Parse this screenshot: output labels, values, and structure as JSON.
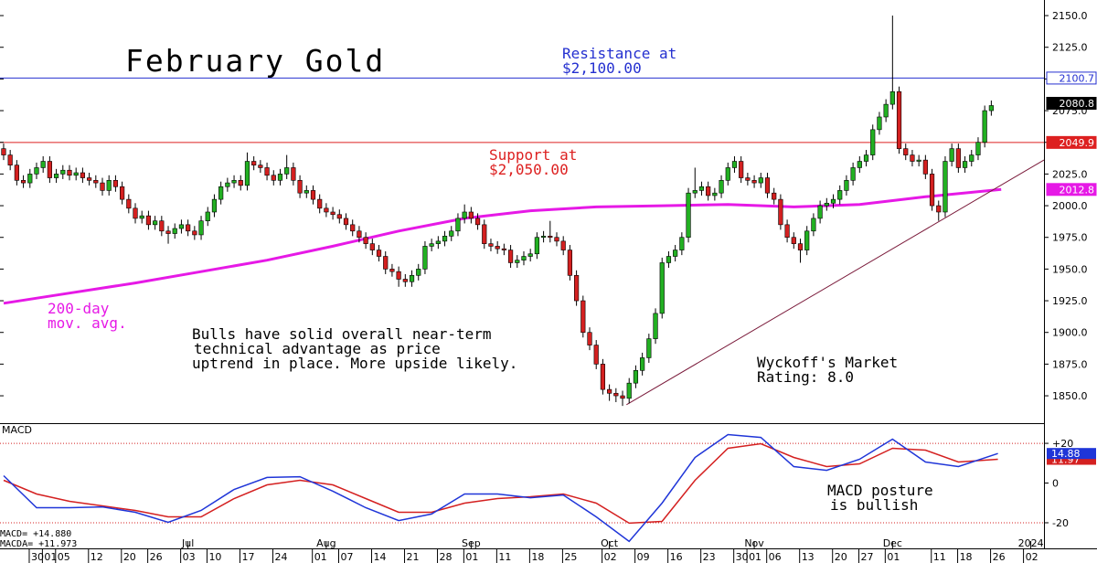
{
  "chart_data": {
    "type": "candlestick",
    "title": "February Gold",
    "xlim": [
      -0.55,
      158
    ],
    "ylim": [
      1828.4,
      2162.3
    ],
    "yticks": [
      {
        "value": 1850,
        "label": "1850.0"
      },
      {
        "value": 1875,
        "label": "1875.0"
      },
      {
        "value": 1900,
        "label": "1900.0"
      },
      {
        "value": 1925,
        "label": "1925.0"
      },
      {
        "value": 1950,
        "label": "1950.0"
      },
      {
        "value": 1975,
        "label": "1975.0"
      },
      {
        "value": 2000,
        "label": "2000.0"
      },
      {
        "value": 2025,
        "label": "2025.0"
      },
      {
        "value": 2050,
        "label": "2050.0"
      },
      {
        "value": 2075,
        "label": "2075.0"
      },
      {
        "value": 2100,
        "label": "2100.0"
      },
      {
        "value": 2125,
        "label": "2125.0"
      },
      {
        "value": 2150,
        "label": "2150.0"
      }
    ],
    "xticks": [
      {
        "value": 5,
        "label": "30"
      },
      {
        "value": 7,
        "label": "01"
      },
      {
        "value": 9,
        "label": "05"
      },
      {
        "value": 14,
        "label": "12"
      },
      {
        "value": 19,
        "label": "20"
      },
      {
        "value": 23,
        "label": "26"
      },
      {
        "value": 28,
        "label": "03"
      },
      {
        "value": 32,
        "label": "10"
      },
      {
        "value": 37,
        "label": "17"
      },
      {
        "value": 42,
        "label": "24"
      },
      {
        "value": 48,
        "label": "01"
      },
      {
        "value": 52,
        "label": "07"
      },
      {
        "value": 57,
        "label": "14"
      },
      {
        "value": 62,
        "label": "21"
      },
      {
        "value": 67,
        "label": "28"
      },
      {
        "value": 71,
        "label": "01"
      },
      {
        "value": 76,
        "label": "11"
      },
      {
        "value": 81,
        "label": "18"
      },
      {
        "value": 86,
        "label": "25"
      },
      {
        "value": 92,
        "label": "02"
      },
      {
        "value": 97,
        "label": "09"
      },
      {
        "value": 102,
        "label": "16"
      },
      {
        "value": 107,
        "label": "23"
      },
      {
        "value": 112,
        "label": "30"
      },
      {
        "value": 114,
        "label": "01"
      },
      {
        "value": 117,
        "label": "06"
      },
      {
        "value": 122,
        "label": "13"
      },
      {
        "value": 127,
        "label": "20"
      },
      {
        "value": 131,
        "label": "27"
      },
      {
        "value": 135,
        "label": "01"
      },
      {
        "value": 142,
        "label": "11"
      },
      {
        "value": 146,
        "label": "18"
      },
      {
        "value": 151,
        "label": "26"
      },
      {
        "value": 156,
        "label": "02"
      }
    ],
    "months": [
      {
        "value": 28,
        "label": "Jul"
      },
      {
        "value": 49,
        "label": "Aug"
      },
      {
        "value": 71,
        "label": "Sep"
      },
      {
        "value": 92,
        "label": "Oct"
      },
      {
        "value": 114,
        "label": "Nov"
      },
      {
        "value": 135,
        "label": "Dec"
      },
      {
        "value": 156,
        "label": "2024"
      }
    ],
    "up_color": "#22b022",
    "down_color": "#d42020",
    "open": [
      2045,
      2040,
      2032,
      2020,
      2018,
      2025,
      2030,
      2035,
      2022,
      2025,
      2028,
      2024,
      2026,
      2022,
      2020,
      2018,
      2012,
      2020,
      2015,
      2005,
      1998,
      1990,
      1992,
      1985,
      1988,
      1980,
      1978,
      1982,
      1985,
      1980,
      1977,
      1988,
      1995,
      2005,
      2015,
      2018,
      2020,
      2016,
      2035,
      2032,
      2030,
      2024,
      2020,
      2025,
      2030,
      2020,
      2010,
      2012,
      2005,
      1998,
      1995,
      1993,
      1990,
      1985,
      1980,
      1975,
      1970,
      1965,
      1960,
      1950,
      1948,
      1942,
      1940,
      1945,
      1950,
      1968,
      1970,
      1972,
      1976,
      1980,
      1990,
      1995,
      1990,
      1985,
      1970,
      1968,
      1966,
      1965,
      1955,
      1957,
      1960,
      1962,
      1975,
      1976,
      1975,
      1972,
      1965,
      1945,
      1925,
      1900,
      1890,
      1875,
      1855,
      1852,
      1850,
      1848,
      1860,
      1870,
      1880,
      1895,
      1915,
      1955,
      1960,
      1965,
      1975,
      2010,
      2012,
      2015,
      2008,
      2010,
      2020,
      2030,
      2035,
      2022,
      2020,
      2018,
      2022,
      2010,
      2005,
      1985,
      1975,
      1970,
      1965,
      1980,
      1990,
      2000,
      2002,
      2005,
      2012,
      2020,
      2030,
      2035,
      2040,
      2060,
      2070,
      2080,
      2090,
      2045,
      2040,
      2035,
      2036,
      2025,
      2000,
      1995,
      2035,
      2045,
      2030,
      2035,
      2040,
      2050,
      2075
    ],
    "high": [
      2049,
      2044,
      2036,
      2024,
      2029,
      2034,
      2039,
      2039,
      2029,
      2032,
      2032,
      2030,
      2030,
      2026,
      2024,
      2022,
      2024,
      2024,
      2019,
      2009,
      2002,
      1996,
      1996,
      1992,
      1992,
      1984,
      1986,
      1989,
      1989,
      1984,
      1992,
      1999,
      2009,
      2019,
      2022,
      2024,
      2024,
      2042,
      2039,
      2036,
      2034,
      2028,
      2029,
      2040,
      2034,
      2024,
      2016,
      2016,
      2009,
      2002,
      1999,
      1997,
      1994,
      1989,
      1984,
      1979,
      1974,
      1969,
      1964,
      1954,
      1952,
      1946,
      1949,
      1954,
      1972,
      1974,
      1976,
      1980,
      1984,
      1994,
      2001,
      1999,
      1994,
      1989,
      1974,
      1972,
      1970,
      1969,
      1961,
      1964,
      1966,
      1979,
      1980,
      1988,
      1979,
      1976,
      1969,
      1949,
      1929,
      1904,
      1894,
      1879,
      1859,
      1856,
      1854,
      1864,
      1874,
      1884,
      1899,
      1919,
      1959,
      1964,
      1969,
      1979,
      2014,
      2030,
      2019,
      2019,
      2014,
      2024,
      2034,
      2039,
      2039,
      2026,
      2024,
      2026,
      2026,
      2014,
      2009,
      1989,
      1979,
      1974,
      1984,
      1994,
      2004,
      2006,
      2009,
      2016,
      2024,
      2034,
      2039,
      2044,
      2064,
      2074,
      2084,
      2150,
      2094,
      2049,
      2044,
      2040,
      2040,
      2029,
      2004,
      2039,
      2049,
      2049,
      2039,
      2044,
      2054,
      2079,
      2083
    ],
    "low": [
      2036,
      2028,
      2016,
      2014,
      2014,
      2021,
      2026,
      2018,
      2018,
      2021,
      2020,
      2020,
      2018,
      2016,
      2014,
      2008,
      2008,
      2011,
      2001,
      1994,
      1986,
      1986,
      1981,
      1981,
      1976,
      1970,
      1974,
      1978,
      1976,
      1973,
      1973,
      1984,
      1991,
      2001,
      2011,
      2014,
      2012,
      2012,
      2028,
      2026,
      2020,
      2016,
      2016,
      2021,
      2016,
      2006,
      2006,
      2001,
      1994,
      1991,
      1989,
      1986,
      1981,
      1976,
      1971,
      1966,
      1961,
      1956,
      1946,
      1944,
      1936,
      1936,
      1936,
      1941,
      1946,
      1964,
      1966,
      1968,
      1972,
      1976,
      1986,
      1986,
      1981,
      1966,
      1964,
      1962,
      1961,
      1951,
      1951,
      1953,
      1956,
      1958,
      1971,
      1971,
      1968,
      1961,
      1941,
      1921,
      1896,
      1886,
      1871,
      1851,
      1846,
      1845,
      1842,
      1844,
      1856,
      1866,
      1876,
      1891,
      1911,
      1951,
      1956,
      1961,
      1971,
      2006,
      2008,
      2004,
      2004,
      2006,
      2016,
      2026,
      2018,
      2016,
      2014,
      2014,
      2006,
      2001,
      1981,
      1971,
      1966,
      1955,
      1961,
      1976,
      1986,
      1996,
      1998,
      2001,
      2008,
      2016,
      2026,
      2031,
      2036,
      2056,
      2066,
      2076,
      2041,
      2036,
      2031,
      2031,
      2021,
      1996,
      1988,
      1991,
      2031,
      2026,
      2026,
      2031,
      2036,
      2046,
      2071
    ],
    "close": [
      2040,
      2032,
      2020,
      2018,
      2025,
      2030,
      2035,
      2022,
      2025,
      2028,
      2024,
      2026,
      2022,
      2020,
      2018,
      2012,
      2020,
      2015,
      2005,
      1998,
      1990,
      1992,
      1985,
      1988,
      1980,
      1978,
      1982,
      1985,
      1980,
      1977,
      1988,
      1995,
      2005,
      2015,
      2018,
      2020,
      2016,
      2035,
      2032,
      2030,
      2024,
      2020,
      2025,
      2030,
      2020,
      2010,
      2012,
      2005,
      1998,
      1995,
      1993,
      1990,
      1985,
      1980,
      1975,
      1970,
      1965,
      1960,
      1950,
      1948,
      1942,
      1940,
      1945,
      1950,
      1968,
      1970,
      1972,
      1976,
      1980,
      1990,
      1995,
      1990,
      1985,
      1970,
      1968,
      1966,
      1965,
      1955,
      1957,
      1960,
      1962,
      1975,
      1976,
      1975,
      1972,
      1965,
      1945,
      1925,
      1900,
      1890,
      1875,
      1855,
      1852,
      1850,
      1848,
      1860,
      1870,
      1880,
      1895,
      1915,
      1955,
      1960,
      1965,
      1975,
      2010,
      2012,
      2015,
      2008,
      2010,
      2020,
      2030,
      2035,
      2022,
      2020,
      2018,
      2022,
      2010,
      2005,
      1985,
      1975,
      1970,
      1965,
      1980,
      1990,
      2000,
      2002,
      2005,
      2012,
      2020,
      2030,
      2035,
      2040,
      2060,
      2070,
      2080,
      2090,
      2045,
      2040,
      2035,
      2036,
      2025,
      2000,
      1995,
      2035,
      2045,
      2030,
      2035,
      2040,
      2050,
      2075,
      2079
    ],
    "ma": {
      "color": "#e619e6",
      "x": [
        0,
        10,
        20,
        30,
        40,
        50,
        60,
        70,
        80,
        90,
        100,
        110,
        120,
        130,
        140,
        151.5
      ],
      "values": [
        1923,
        1931,
        1939,
        1948,
        1957,
        1968,
        1980,
        1990,
        1996,
        1999,
        2000,
        2001,
        1999,
        2001,
        2007,
        2012.8
      ]
    },
    "trendline": {
      "color": "#7a1a3a",
      "x": [
        94.6,
        158
      ],
      "values": [
        1843,
        2036
      ]
    },
    "price_markers": [
      {
        "value": 2100.7,
        "color": "#2430d0",
        "filled": false,
        "line": true
      },
      {
        "value": 2049.9,
        "color": "#dd2020",
        "filled": true,
        "line": true
      },
      {
        "value": 2012.8,
        "color": "#e619e6",
        "filled": true,
        "line": false
      },
      {
        "value": 2080.8,
        "color": "#000000",
        "filled": true,
        "line": false
      }
    ],
    "notes": {
      "resistance": [
        "Resistance at",
        "$2,100.00"
      ],
      "support": [
        "Support at",
        "$2,050.00"
      ],
      "ma": [
        "200-day",
        "mov. avg."
      ],
      "bulls": [
        "Bulls have solid overall near-term",
        "technical advantage as price",
        "uptrend in place. More upside likely."
      ],
      "rating": [
        "Wyckoff's Market",
        "Rating: 8.0"
      ]
    },
    "macd": {
      "title": "MACD",
      "ylim": [
        -32.9,
        29.7
      ],
      "yticks": [
        {
          "value": 20,
          "label": "+20"
        },
        0,
        {
          "value": -20,
          "label": "-20"
        }
      ],
      "x": [
        0,
        5,
        10,
        15,
        20,
        25,
        30,
        35,
        40,
        45,
        50,
        55,
        60,
        65,
        70,
        75,
        80,
        85,
        90,
        95,
        100,
        105,
        110,
        115,
        120,
        125,
        130,
        135,
        140,
        145,
        151
      ],
      "series": [
        {
          "color": "#d42020",
          "values": [
            1.4,
            -5.5,
            -9.2,
            -11.5,
            -13.8,
            -17.0,
            -17.0,
            -7.8,
            -0.9,
            1.4,
            -0.9,
            -7.8,
            -14.7,
            -14.7,
            -10.1,
            -7.8,
            -6.9,
            -5.5,
            -10.1,
            -20.2,
            -19.3,
            1.4,
            17.5,
            19.8,
            12.9,
            8.3,
            9.7,
            17.5,
            16.6,
            10.6,
            12.0
          ]
        },
        {
          "color": "#1f35d8",
          "values": [
            3.7,
            -12.4,
            -12.4,
            -12.0,
            -14.7,
            -19.8,
            -13.8,
            -3.2,
            2.8,
            3.2,
            -4.1,
            -12.4,
            -18.9,
            -15.6,
            -5.5,
            -5.5,
            -7.4,
            -6.0,
            -17.0,
            -29.4,
            -10.1,
            12.9,
            24.4,
            23.0,
            8.3,
            6.4,
            12.0,
            22.1,
            10.6,
            8.3,
            14.9
          ]
        }
      ],
      "markers": [
        {
          "value": 11.97,
          "color": "#d42020"
        },
        {
          "value": 14.88,
          "color": "#1f35d8"
        }
      ],
      "readout": [
        "MACD=  +14.880",
        "MACDA= +11.973"
      ],
      "note": [
        "MACD posture",
        "is bullish"
      ]
    }
  }
}
